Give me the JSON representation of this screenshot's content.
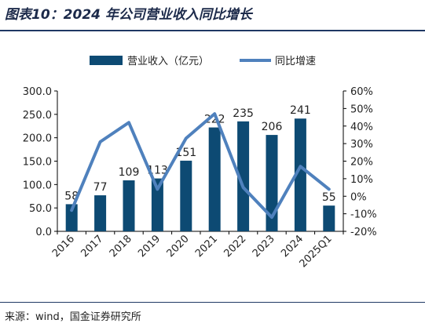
{
  "header": {
    "title": "图表10：2024 年公司营业收入同比增长"
  },
  "footer": {
    "source": "来源：wind，国金证券研究所"
  },
  "colors": {
    "bar": "#0d4a73",
    "line": "#4f81bd",
    "rule": "#1f3864"
  },
  "chart_data": {
    "type": "bar",
    "title": "图表10：2024 年公司营业收入同比增长",
    "categories": [
      "2016",
      "2017",
      "2018",
      "2019",
      "2020",
      "2021",
      "2022",
      "2023",
      "2024",
      "2025Q1"
    ],
    "series": [
      {
        "name": "营业收入（亿元）",
        "type": "bar",
        "axis": "left",
        "values": [
          58,
          77,
          109,
          113,
          151,
          222,
          235,
          206,
          241,
          55
        ]
      },
      {
        "name": "同比增速",
        "type": "line",
        "axis": "right",
        "unit": "%",
        "values": [
          -8,
          31,
          42,
          4,
          33,
          47,
          5,
          -12,
          17,
          4
        ]
      }
    ],
    "y_left": {
      "ylim": [
        0,
        300
      ],
      "ticks": [
        "0.0",
        "50.0",
        "100.0",
        "150.0",
        "200.0",
        "250.0",
        "300.0"
      ]
    },
    "y_right": {
      "ylim": [
        -20,
        60
      ],
      "ticks": [
        "-20%",
        "-10%",
        "0%",
        "10%",
        "20%",
        "30%",
        "40%",
        "50%",
        "60%"
      ]
    },
    "legend_position": "top",
    "grid": false
  }
}
